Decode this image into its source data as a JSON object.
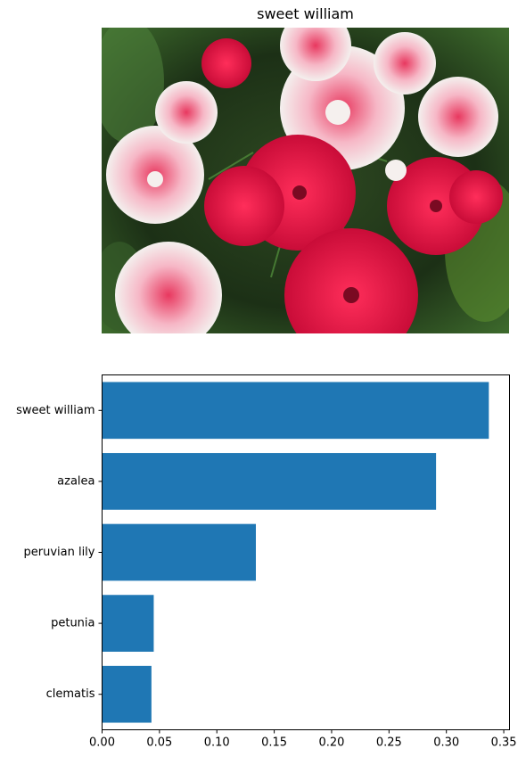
{
  "image_title": "sweet william",
  "chart_data": {
    "type": "bar",
    "orientation": "horizontal",
    "categories": [
      "sweet william",
      "azalea",
      "peruvian lily",
      "petunia",
      "clematis"
    ],
    "values": [
      0.337,
      0.291,
      0.134,
      0.045,
      0.043
    ],
    "xlim": [
      0.0,
      0.355
    ],
    "xticks": [
      "0.00",
      "0.05",
      "0.10",
      "0.15",
      "0.20",
      "0.25",
      "0.30",
      "0.35"
    ],
    "title": "",
    "xlabel": "",
    "ylabel": "",
    "bar_color": "#1f77b4"
  }
}
